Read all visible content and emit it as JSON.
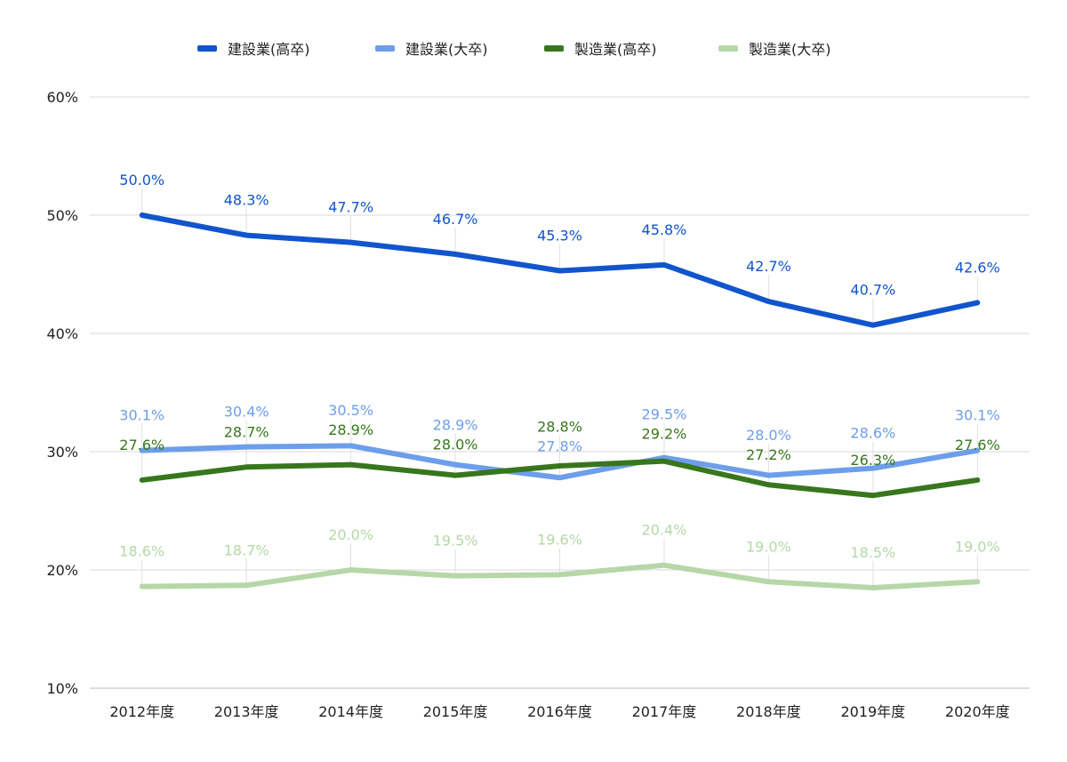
{
  "chart_data": {
    "type": "line",
    "title": "",
    "xlabel": "",
    "ylabel": "",
    "ylim": [
      10,
      60
    ],
    "yticks": [
      "10%",
      "20%",
      "30%",
      "40%",
      "50%",
      "60%"
    ],
    "ytick_values": [
      10,
      20,
      30,
      40,
      50,
      60
    ],
    "grid": true,
    "legend_position": "top",
    "categories": [
      "2012年度",
      "2013年度",
      "2014年度",
      "2015年度",
      "2016年度",
      "2017年度",
      "2018年度",
      "2019年度",
      "2020年度"
    ],
    "series": [
      {
        "name": "建設業(高卒)",
        "color": "#1155cc",
        "values": [
          50.0,
          48.3,
          47.7,
          46.7,
          45.3,
          45.8,
          42.7,
          40.7,
          42.6
        ],
        "labels": [
          "50.0%",
          "48.3%",
          "47.7%",
          "46.7%",
          "45.3%",
          "45.8%",
          "42.7%",
          "40.7%",
          "42.6%"
        ]
      },
      {
        "name": "建設業(大卒)",
        "color": "#6d9eeb",
        "values": [
          30.1,
          30.4,
          30.5,
          28.9,
          27.8,
          29.5,
          28.0,
          28.6,
          30.1
        ],
        "labels": [
          "30.1%",
          "30.4%",
          "30.5%",
          "28.9%",
          "27.8%",
          "29.5%",
          "28.0%",
          "28.6%",
          "30.1%"
        ]
      },
      {
        "name": "製造業(高卒)",
        "color": "#38761d",
        "values": [
          27.6,
          28.7,
          28.9,
          28.0,
          28.8,
          29.2,
          27.2,
          26.3,
          27.6
        ],
        "labels": [
          "27.6%",
          "28.7%",
          "28.9%",
          "28.0%",
          "28.8%",
          "29.2%",
          "27.2%",
          "26.3%",
          "27.6%"
        ]
      },
      {
        "name": "製造業(大卒)",
        "color": "#b6d7a8",
        "values": [
          18.6,
          18.7,
          20.0,
          19.5,
          19.6,
          20.4,
          19.0,
          18.5,
          19.0
        ],
        "labels": [
          "18.6%",
          "18.7%",
          "20.0%",
          "19.5%",
          "19.6%",
          "20.4%",
          "19.0%",
          "18.5%",
          "19.0%"
        ]
      }
    ]
  }
}
